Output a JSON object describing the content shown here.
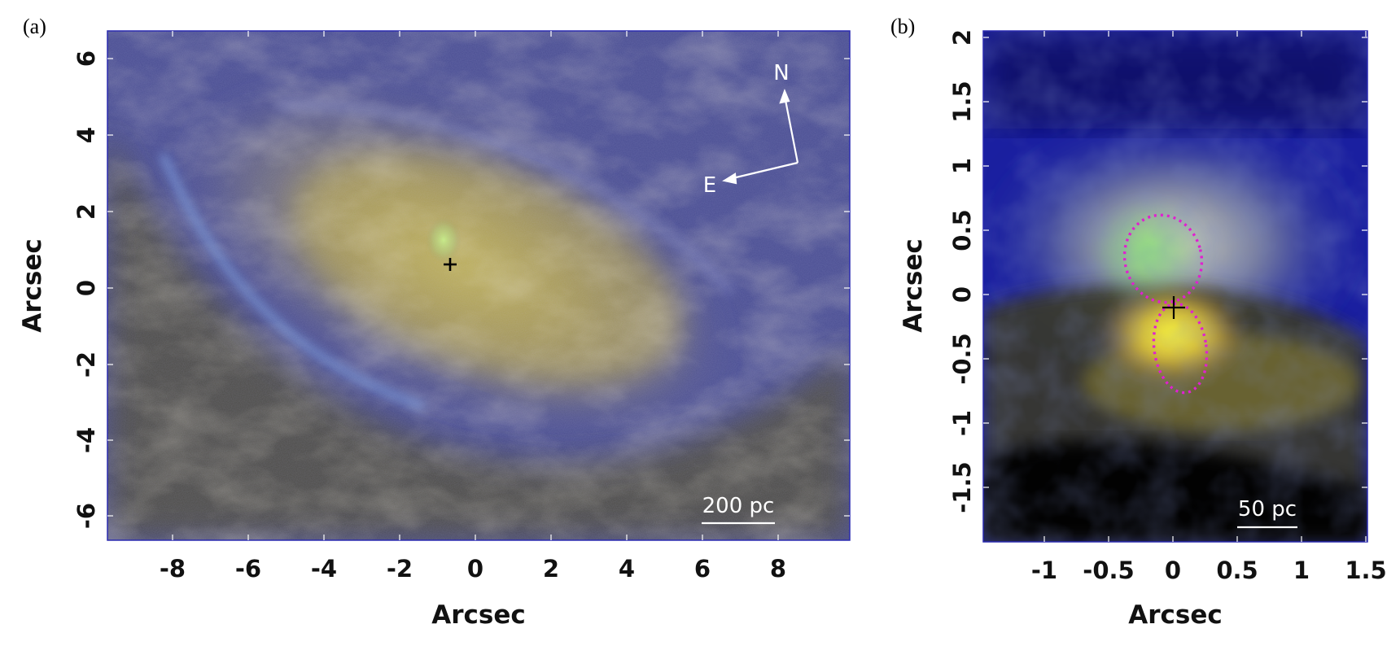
{
  "panels": [
    {
      "letter": "(a)",
      "xlabel": "Arcsec",
      "ylabel": "Arcsec",
      "xticks": [
        "-8",
        "-6",
        "-4",
        "-2",
        "0",
        "2",
        "4",
        "6",
        "8"
      ],
      "yticks": [
        "6",
        "4",
        "2",
        "0",
        "-2",
        "-4",
        "-6"
      ],
      "scale_bar": "200 pc",
      "compass": {
        "north": "N",
        "east": "E"
      }
    },
    {
      "letter": "(b)",
      "xlabel": "Arcsec",
      "ylabel": "Arcsec",
      "xticks": [
        "-1",
        "-0.5",
        "0",
        "0.5",
        "1",
        "1.5"
      ],
      "yticks": [
        "2",
        "1.5",
        "1",
        "0.5",
        "0",
        "-0.5",
        "-1",
        "-1.5"
      ],
      "scale_bar": "50 pc"
    }
  ],
  "colors": {
    "marker": "#000000",
    "ellipses": "#e020d0",
    "annotation": "#ffffff"
  }
}
